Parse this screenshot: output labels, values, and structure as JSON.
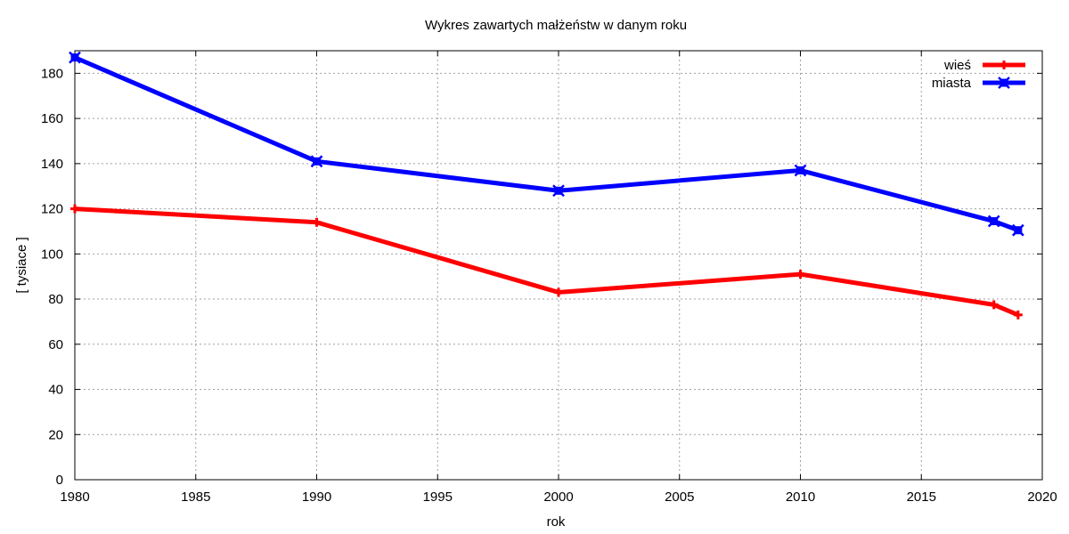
{
  "chart_data": {
    "type": "line",
    "title": "Wykres zawartych małżeństw w danym roku",
    "xlabel": "rok",
    "ylabel": "[ tysiace ]",
    "xlim": [
      1980,
      2020
    ],
    "ylim": [
      0,
      190
    ],
    "xticks": [
      1980,
      1985,
      1990,
      1995,
      2000,
      2005,
      2010,
      2015,
      2020
    ],
    "yticks": [
      0,
      20,
      40,
      60,
      80,
      100,
      120,
      140,
      160,
      180
    ],
    "grid": true,
    "legend_position": "top-right",
    "series": [
      {
        "name": "wieś",
        "color": "#ff0000",
        "marker": "plus",
        "x": [
          1980,
          1990,
          2000,
          2010,
          2018,
          2019
        ],
        "y": [
          120,
          114,
          83,
          91,
          77.5,
          73
        ]
      },
      {
        "name": "miasta",
        "color": "#0000ff",
        "marker": "boxed-x",
        "x": [
          1980,
          1990,
          2000,
          2010,
          2018,
          2019
        ],
        "y": [
          187,
          141,
          128,
          137,
          114.5,
          110.5
        ]
      }
    ]
  }
}
